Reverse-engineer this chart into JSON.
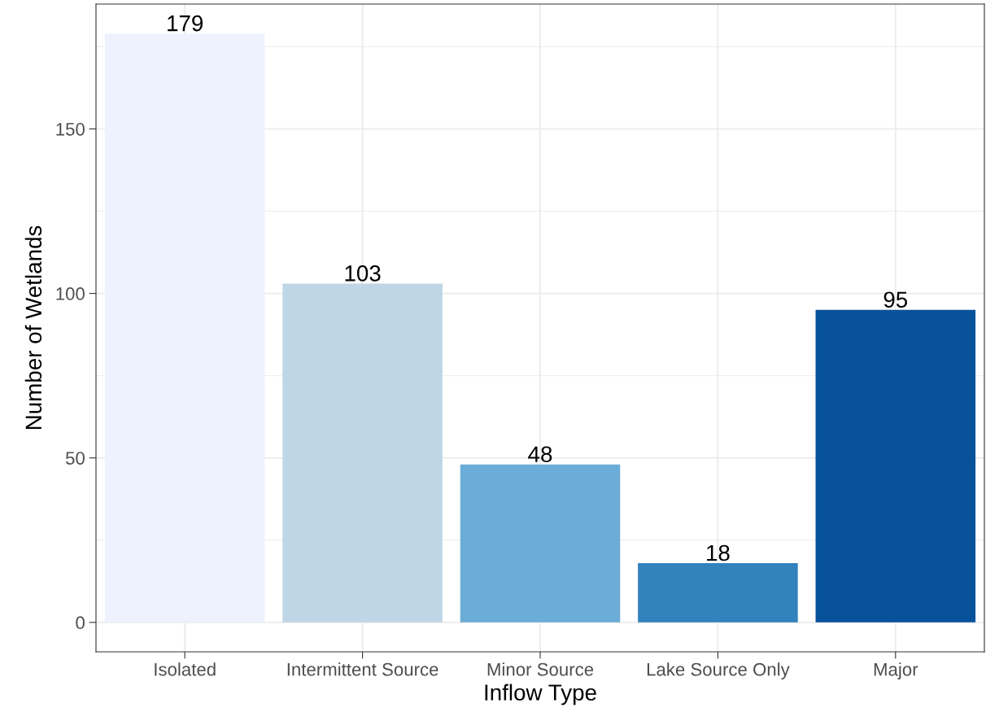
{
  "chart_data": {
    "type": "bar",
    "xlabel": "Inflow Type",
    "ylabel": "Number of Wetlands",
    "categories": [
      "Isolated",
      "Intermittent Source",
      "Minor Source",
      "Lake Source Only",
      "Major"
    ],
    "values": [
      179,
      103,
      48,
      18,
      95
    ],
    "colors": [
      "#eef2ff",
      "#bed6e6",
      "#6badd6",
      "#3182bd",
      "#08529c"
    ],
    "ylim": [
      -8.95,
      187.95
    ],
    "yticks": [
      0,
      50,
      100,
      150
    ],
    "grid": true,
    "data_labels": true
  }
}
